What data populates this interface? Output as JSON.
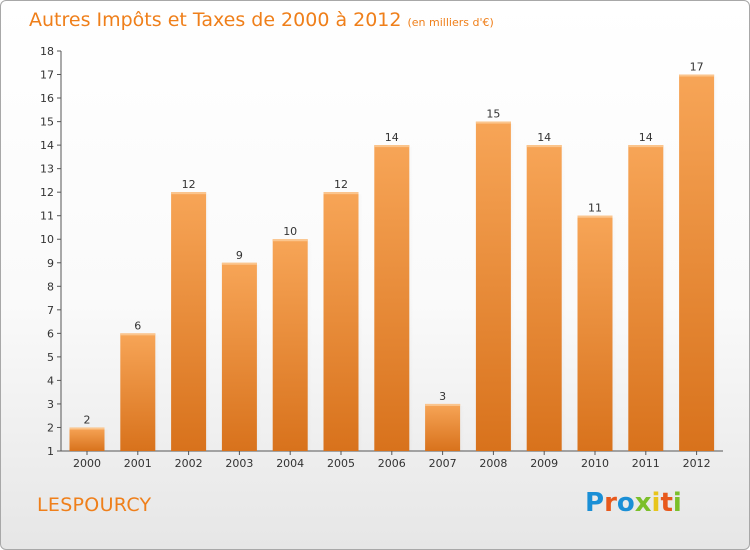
{
  "header": {
    "title": "Autres Impôts et Taxes de 2000 à 2012",
    "subtitle": "(en milliers d'€)"
  },
  "footer": {
    "commune": "LESPOURCY",
    "logo_text": "Proxiti"
  },
  "colors": {
    "accent": "#ef7f1a",
    "bar_top": "#f7a557",
    "bar_bottom": "#d8721c",
    "logo_letters": [
      "#1a8fd6",
      "#e8591c",
      "#1a8fd6",
      "#7bbf2a",
      "#e8c51c",
      "#e8591c",
      "#7bbf2a"
    ]
  },
  "chart_data": {
    "type": "bar",
    "categories": [
      "2000",
      "2001",
      "2002",
      "2003",
      "2004",
      "2005",
      "2006",
      "2007",
      "2008",
      "2009",
      "2010",
      "2011",
      "2012"
    ],
    "values": [
      2,
      6,
      12,
      9,
      10,
      12,
      14,
      3,
      15,
      14,
      11,
      14,
      17
    ],
    "data_labels": [
      "2",
      "6",
      "12",
      "9",
      "10",
      "12",
      "14",
      "3",
      "15",
      "14",
      "11",
      "14",
      "17"
    ],
    "yticks": [
      1,
      2,
      3,
      4,
      5,
      6,
      7,
      8,
      9,
      10,
      11,
      12,
      13,
      14,
      15,
      16,
      17,
      18
    ],
    "ylim": [
      1,
      18
    ],
    "title": "Autres Impôts et Taxes de 2000 à 2012",
    "xlabel": "",
    "ylabel": "",
    "grid": false,
    "legend": "none"
  }
}
